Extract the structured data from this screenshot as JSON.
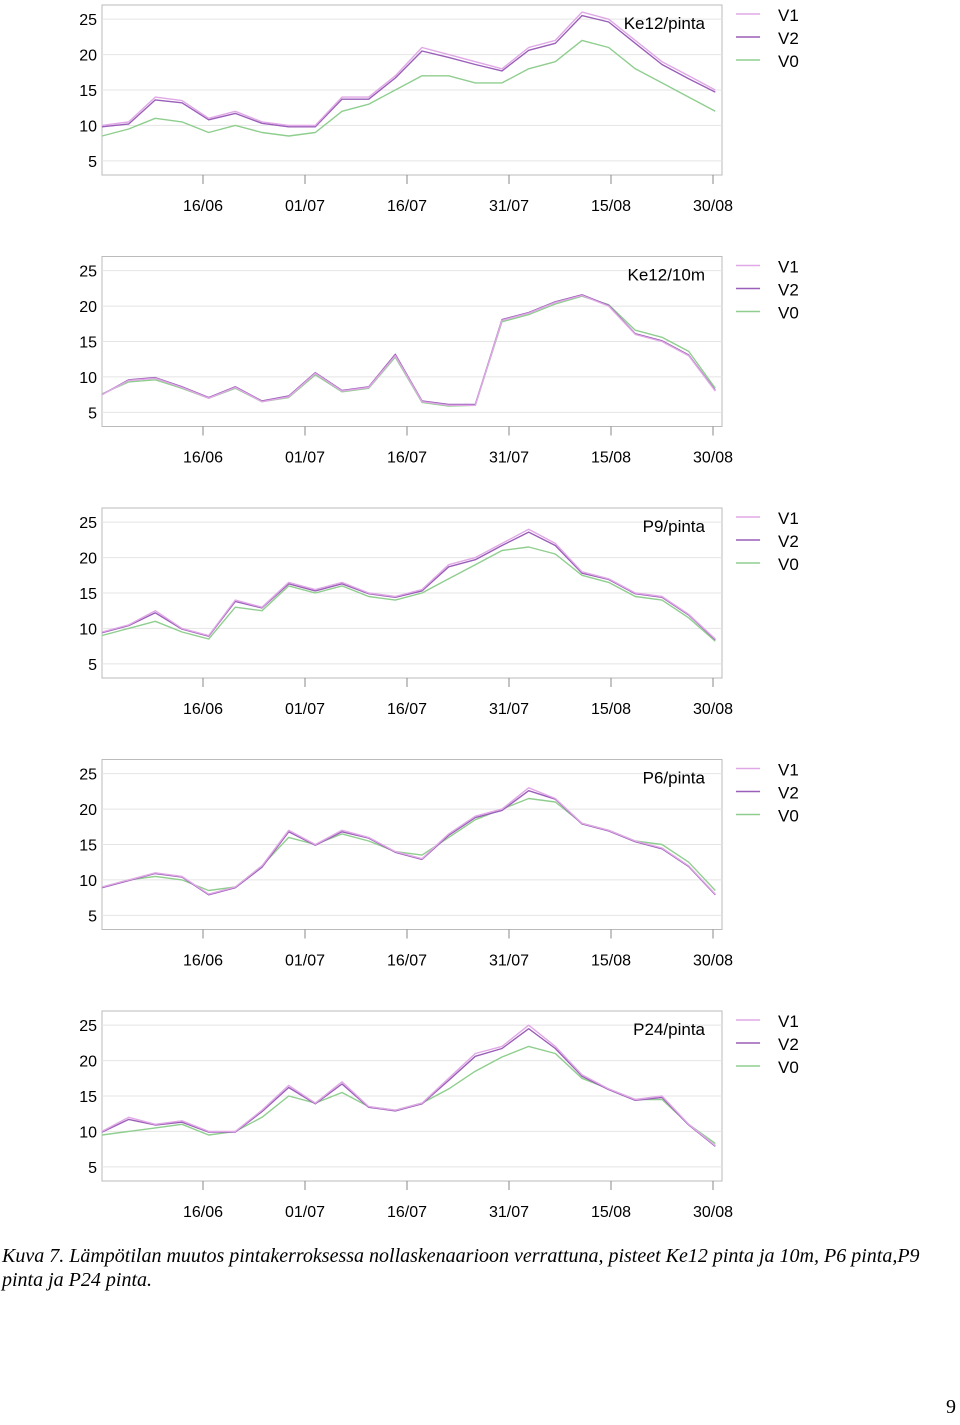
{
  "caption": "Kuva 7. Lämpötilan muutos pintakerroksessa  nollaskenaarioon verrattuna, pisteet  Ke12 pinta ja 10m, P6 pinta,P9 pinta ja P24 pinta.",
  "page_number": "9",
  "colors": {
    "V1": "#e0a8e6",
    "V2": "#9a5fb8",
    "V0": "#8fce8f",
    "grid": "#e4e4e4",
    "frame": "#bbbbbb"
  },
  "chart_data": [
    {
      "type": "line",
      "title": "Ke12/pinta",
      "x_tick_labels": [
        "16/06",
        "01/07",
        "16/07",
        "31/07",
        "15/08",
        "30/08"
      ],
      "y_ticks": [
        5,
        10,
        15,
        20,
        25
      ],
      "ylim": [
        3,
        27
      ],
      "x": [
        0,
        4,
        8,
        12,
        16,
        20,
        24,
        28,
        32,
        36,
        40,
        44,
        48,
        52,
        56,
        60,
        64,
        68,
        72,
        76,
        80,
        84,
        88,
        92
      ],
      "x_range": [
        0,
        93
      ],
      "legend": [
        "V1",
        "V2",
        "V0"
      ],
      "series": [
        {
          "name": "V1",
          "values": [
            10,
            10.5,
            14,
            13.5,
            11,
            12,
            10.5,
            10,
            10,
            14,
            14,
            17,
            21,
            20,
            19,
            18,
            21,
            22,
            26,
            25,
            22,
            19,
            17,
            15
          ]
        },
        {
          "name": "V2",
          "values": [
            9.8,
            10.2,
            13.6,
            13.2,
            10.8,
            11.7,
            10.3,
            9.8,
            9.8,
            13.7,
            13.7,
            16.7,
            20.5,
            19.6,
            18.6,
            17.7,
            20.6,
            21.6,
            25.5,
            24.6,
            21.6,
            18.6,
            16.6,
            14.7
          ]
        },
        {
          "name": "V0",
          "values": [
            8.5,
            9.5,
            11,
            10.5,
            9,
            10,
            9,
            8.5,
            9,
            12,
            13,
            15,
            17,
            17,
            16,
            16,
            18,
            19,
            22,
            21,
            18,
            16,
            14,
            12
          ]
        }
      ]
    },
    {
      "type": "line",
      "title": "Ke12/10m",
      "x_tick_labels": [
        "16/06",
        "01/07",
        "16/07",
        "31/07",
        "15/08",
        "30/08"
      ],
      "y_ticks": [
        5,
        10,
        15,
        20,
        25
      ],
      "ylim": [
        3,
        27
      ],
      "x": [
        0,
        4,
        8,
        12,
        16,
        20,
        24,
        28,
        32,
        36,
        40,
        44,
        48,
        52,
        56,
        60,
        64,
        68,
        72,
        76,
        80,
        84,
        88,
        92
      ],
      "x_range": [
        0,
        93
      ],
      "legend": [
        "V1",
        "V2",
        "V0"
      ],
      "series": [
        {
          "name": "V1",
          "values": [
            7.5,
            9.5,
            9.8,
            8.5,
            7,
            8.5,
            6.5,
            7.2,
            10.5,
            8,
            8.5,
            13,
            6.5,
            6,
            6,
            18,
            19,
            20.5,
            21.5,
            20,
            16,
            15,
            13,
            8
          ]
        },
        {
          "name": "V2",
          "values": [
            7.5,
            9.6,
            9.9,
            8.6,
            7.1,
            8.6,
            6.6,
            7.3,
            10.6,
            8.1,
            8.6,
            13.2,
            6.6,
            6.1,
            6.1,
            18.1,
            19.1,
            20.6,
            21.6,
            20.1,
            16.1,
            15.1,
            13.1,
            8.1
          ]
        },
        {
          "name": "V0",
          "values": [
            7.6,
            9.3,
            9.6,
            8.4,
            7,
            8.4,
            6.5,
            7.1,
            10.3,
            7.9,
            8.4,
            12.8,
            6.4,
            5.9,
            6,
            17.8,
            18.8,
            20.3,
            21.4,
            20.2,
            16.6,
            15.6,
            13.6,
            8.4
          ]
        }
      ]
    },
    {
      "type": "line",
      "title": "P9/pinta",
      "x_tick_labels": [
        "16/06",
        "01/07",
        "16/07",
        "31/07",
        "15/08",
        "30/08"
      ],
      "y_ticks": [
        5,
        10,
        15,
        20,
        25
      ],
      "ylim": [
        3,
        27
      ],
      "x": [
        0,
        4,
        8,
        12,
        16,
        20,
        24,
        28,
        32,
        36,
        40,
        44,
        48,
        52,
        56,
        60,
        64,
        68,
        72,
        76,
        80,
        84,
        88,
        92
      ],
      "x_range": [
        0,
        93
      ],
      "legend": [
        "V1",
        "V2",
        "V0"
      ],
      "series": [
        {
          "name": "V1",
          "values": [
            9.5,
            10.5,
            12.5,
            10,
            9,
            14,
            13,
            16.5,
            15.5,
            16.5,
            15,
            14.5,
            15.5,
            19,
            20,
            22,
            24,
            22,
            18,
            17,
            15,
            14.5,
            12,
            8.5
          ]
        },
        {
          "name": "V2",
          "values": [
            9.4,
            10.4,
            12.2,
            9.9,
            8.9,
            13.8,
            12.9,
            16.3,
            15.3,
            16.3,
            14.9,
            14.4,
            15.3,
            18.7,
            19.7,
            21.7,
            23.6,
            21.7,
            17.8,
            16.9,
            14.9,
            14.4,
            11.9,
            8.4
          ]
        },
        {
          "name": "V0",
          "values": [
            9,
            10,
            11,
            9.5,
            8.5,
            13,
            12.5,
            16,
            15,
            16,
            14.5,
            14,
            15,
            17,
            19,
            21,
            21.5,
            20.5,
            17.5,
            16.5,
            14.5,
            14,
            11.5,
            8.2
          ]
        }
      ]
    },
    {
      "type": "line",
      "title": "P6/pinta",
      "x_tick_labels": [
        "16/06",
        "01/07",
        "16/07",
        "31/07",
        "15/08",
        "30/08"
      ],
      "y_ticks": [
        5,
        10,
        15,
        20,
        25
      ],
      "ylim": [
        3,
        27
      ],
      "x": [
        0,
        4,
        8,
        12,
        16,
        20,
        24,
        28,
        32,
        36,
        40,
        44,
        48,
        52,
        56,
        60,
        64,
        68,
        72,
        76,
        80,
        84,
        88,
        92
      ],
      "x_range": [
        0,
        93
      ],
      "legend": [
        "V1",
        "V2",
        "V0"
      ],
      "series": [
        {
          "name": "V1",
          "values": [
            9,
            10,
            11,
            10.5,
            8,
            9,
            12,
            17,
            15,
            17,
            16,
            14,
            13,
            16.5,
            19,
            20,
            23,
            21.5,
            18,
            17,
            15.5,
            14.5,
            12,
            8
          ]
        },
        {
          "name": "V2",
          "values": [
            8.9,
            9.9,
            10.9,
            10.4,
            7.9,
            8.9,
            11.8,
            16.8,
            14.9,
            16.8,
            15.9,
            13.9,
            12.9,
            16.3,
            18.8,
            19.8,
            22.6,
            21.4,
            17.9,
            16.9,
            15.4,
            14.4,
            11.9,
            7.9
          ]
        },
        {
          "name": "V0",
          "values": [
            9,
            10,
            10.5,
            10,
            8.5,
            9,
            12,
            16,
            15,
            16.5,
            15.5,
            14,
            13.5,
            16,
            18.5,
            20,
            21.5,
            21,
            18,
            17,
            15.5,
            15,
            12.5,
            8.5
          ]
        }
      ]
    },
    {
      "type": "line",
      "title": "P24/pinta",
      "x_tick_labels": [
        "16/06",
        "01/07",
        "16/07",
        "31/07",
        "15/08",
        "30/08"
      ],
      "y_ticks": [
        5,
        10,
        15,
        20,
        25
      ],
      "ylim": [
        3,
        27
      ],
      "x": [
        0,
        4,
        8,
        12,
        16,
        20,
        24,
        28,
        32,
        36,
        40,
        44,
        48,
        52,
        56,
        60,
        64,
        68,
        72,
        76,
        80,
        84,
        88,
        92
      ],
      "x_range": [
        0,
        93
      ],
      "legend": [
        "V1",
        "V2",
        "V0"
      ],
      "series": [
        {
          "name": "V1",
          "values": [
            10,
            12,
            11,
            11.5,
            10,
            10,
            13,
            16.5,
            14,
            17,
            13.5,
            13,
            14,
            17.5,
            21,
            22,
            25,
            22,
            18,
            16,
            14.5,
            15,
            11,
            8
          ]
        },
        {
          "name": "V2",
          "values": [
            9.9,
            11.7,
            10.9,
            11.3,
            9.9,
            9.9,
            12.8,
            16.2,
            13.9,
            16.7,
            13.4,
            12.9,
            13.9,
            17.2,
            20.6,
            21.7,
            24.5,
            21.7,
            17.8,
            15.9,
            14.4,
            14.8,
            10.9,
            7.9
          ]
        },
        {
          "name": "V0",
          "values": [
            9.5,
            10,
            10.5,
            11,
            9.5,
            10,
            12,
            15,
            14,
            15.5,
            13.5,
            13,
            14,
            16,
            18.5,
            20.5,
            22,
            21,
            17.5,
            16,
            14.5,
            14.5,
            11,
            8.3
          ]
        }
      ]
    }
  ]
}
